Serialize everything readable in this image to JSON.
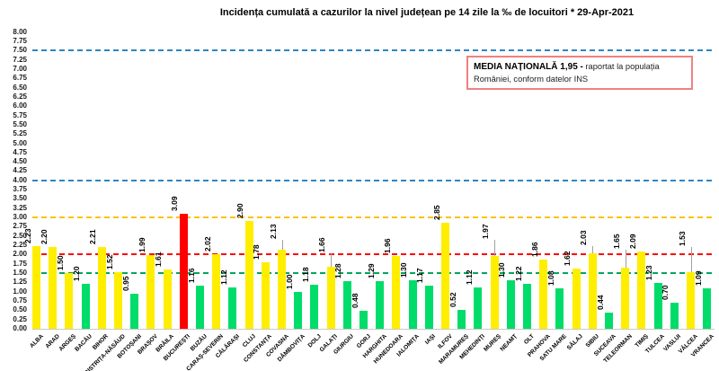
{
  "title": "Incidența cumulată a cazurilor la nivel județean pe 14 zile la ‰ de locuitori *  29-Apr-2021",
  "media_box": {
    "bold": "MEDIA NAȚIONALĂ  1,95 -",
    "normal": " raportat la populația României, conform datelor INS"
  },
  "chart_data": {
    "type": "bar",
    "title": "Incidența cumulată a cazurilor la nivel județean pe 14 zile la ‰ de locuitori *  29-Apr-2021",
    "xlabel": "",
    "ylabel": "",
    "ylim": [
      0,
      8
    ],
    "y_tick_step": 0.25,
    "y_ticks": [
      "8.00",
      "7.75",
      "7.50",
      "7.25",
      "7.00",
      "6.75",
      "6.50",
      "6.25",
      "6.00",
      "5.75",
      "5.50",
      "5.25",
      "5.00",
      "4.75",
      "4.50",
      "4.25",
      "4.00",
      "3.75",
      "3.50",
      "3.25",
      "3.00",
      "2.75",
      "2.50",
      "2.25",
      "2.00",
      "1.75",
      "1.50",
      "1.25",
      "1.00",
      "0.75",
      "0.50",
      "0.25",
      "0.00"
    ],
    "grid": false,
    "legend": "none",
    "national_average": "1,95",
    "palette": {
      "yellow": "#FFEE00",
      "green": "#00DC69",
      "red": "#FF0000"
    },
    "thresholds": [
      {
        "value": 7.5,
        "color": "#2E86C1"
      },
      {
        "value": 4.0,
        "color": "#2E86C1"
      },
      {
        "value": 3.0,
        "color": "#FFC000"
      },
      {
        "value": 2.0,
        "color": "#FF0000"
      },
      {
        "value": 1.5,
        "color": "#00A65C"
      }
    ],
    "bars": [
      {
        "name": "ALBA",
        "value": 2.23,
        "level": "yellow",
        "leader": 0
      },
      {
        "name": "ARAD",
        "value": 2.2,
        "level": "yellow",
        "leader": 0
      },
      {
        "name": "ARGEȘ",
        "value": 1.5,
        "level": "yellow",
        "leader": 0
      },
      {
        "name": "BACĂU",
        "value": 1.2,
        "level": "green",
        "leader": 0
      },
      {
        "name": "BIHOR",
        "value": 2.21,
        "level": "yellow",
        "leader": 0
      },
      {
        "name": "BISTRIȚA-NĂSĂUD",
        "value": 1.52,
        "level": "yellow",
        "leader": 0
      },
      {
        "name": "BOTOȘANI",
        "value": 0.95,
        "level": "green",
        "leader": 0
      },
      {
        "name": "BRAȘOV",
        "value": 1.99,
        "level": "yellow",
        "leader": 0
      },
      {
        "name": "BRĂILA",
        "value": 1.61,
        "level": "yellow",
        "leader": 0
      },
      {
        "name": "BUCUREȘTI",
        "value": 3.09,
        "level": "red",
        "leader": 0
      },
      {
        "name": "BUZĂU",
        "value": 1.16,
        "level": "green",
        "leader": 0
      },
      {
        "name": "CARAȘ-SEVERIN",
        "value": 2.02,
        "level": "yellow",
        "leader": 0
      },
      {
        "name": "CĂLĂRAȘI",
        "value": 1.12,
        "level": "green",
        "leader": 0
      },
      {
        "name": "CLUJ",
        "value": 2.9,
        "level": "yellow",
        "leader": 0
      },
      {
        "name": "CONSTANȚA",
        "value": 1.78,
        "level": "yellow",
        "leader": 0
      },
      {
        "name": "COVASNA",
        "value": 2.13,
        "level": "yellow",
        "leader": 9
      },
      {
        "name": "DÂMBOVIȚA",
        "value": 1.0,
        "level": "green",
        "leader": 0
      },
      {
        "name": "DOLJ",
        "value": 1.18,
        "level": "green",
        "leader": 0
      },
      {
        "name": "GALAȚI",
        "value": 1.66,
        "level": "yellow",
        "leader": 13
      },
      {
        "name": "GIURGIU",
        "value": 1.28,
        "level": "green",
        "leader": 0
      },
      {
        "name": "GORJ",
        "value": 0.48,
        "level": "green",
        "leader": 0
      },
      {
        "name": "HARGHITA",
        "value": 1.29,
        "level": "green",
        "leader": 0
      },
      {
        "name": "HUNEDOARA",
        "value": 1.96,
        "level": "yellow",
        "leader": 0
      },
      {
        "name": "IALOMIȚA",
        "value": 1.3,
        "level": "green",
        "leader": 0
      },
      {
        "name": "IAȘI",
        "value": 1.17,
        "level": "green",
        "leader": 0
      },
      {
        "name": "ILFOV",
        "value": 2.85,
        "level": "yellow",
        "leader": 0
      },
      {
        "name": "MARAMUREȘ",
        "value": 0.52,
        "level": "green",
        "leader": 0
      },
      {
        "name": "MEHEDINȚI",
        "value": 1.12,
        "level": "green",
        "leader": 0
      },
      {
        "name": "MUREȘ",
        "value": 1.97,
        "level": "yellow",
        "leader": 16
      },
      {
        "name": "NEAMȚ",
        "value": 1.3,
        "level": "green",
        "leader": 0
      },
      {
        "name": "OLT",
        "value": 1.22,
        "level": "green",
        "leader": 0
      },
      {
        "name": "PRAHOVA",
        "value": 1.86,
        "level": "yellow",
        "leader": 0
      },
      {
        "name": "SATU MARE",
        "value": 1.08,
        "level": "green",
        "leader": 0
      },
      {
        "name": "SĂLAJ",
        "value": 1.62,
        "level": "yellow",
        "leader": 0
      },
      {
        "name": "SIBIU",
        "value": 2.03,
        "level": "yellow",
        "leader": 6
      },
      {
        "name": "SUCEAVA",
        "value": 0.44,
        "level": "green",
        "leader": 0
      },
      {
        "name": "TELEORMAN",
        "value": 1.65,
        "level": "yellow",
        "leader": 18
      },
      {
        "name": "TIMIȘ",
        "value": 2.09,
        "level": "yellow",
        "leader": 0
      },
      {
        "name": "TULCEA",
        "value": 1.23,
        "level": "green",
        "leader": 0
      },
      {
        "name": "VASLUI",
        "value": 0.7,
        "level": "green",
        "leader": 0
      },
      {
        "name": "VÂLCEA",
        "value": 1.53,
        "level": "yellow",
        "leader": 26
      },
      {
        "name": "VRANCEA",
        "value": 1.09,
        "level": "green",
        "leader": 0
      }
    ]
  }
}
